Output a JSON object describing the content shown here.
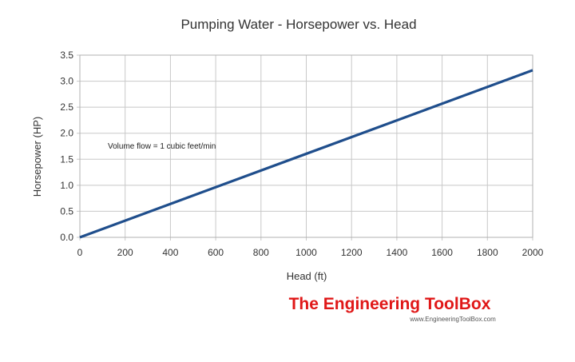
{
  "chart_data": {
    "type": "line",
    "title": "Pumping Water - Horsepower vs. Head",
    "xlabel": "Head (ft)",
    "ylabel": "Horsepower (HP)",
    "xlim": [
      0,
      2000
    ],
    "ylim": [
      0,
      3.5
    ],
    "x_ticks": [
      "0",
      "200",
      "400",
      "600",
      "800",
      "1000",
      "1200",
      "1400",
      "1600",
      "1800",
      "2000"
    ],
    "y_ticks": [
      "0.0",
      "0.5",
      "1.0",
      "1.5",
      "2.0",
      "2.5",
      "3.0",
      "3.5"
    ],
    "grid": true,
    "series": [
      {
        "x": [
          0,
          2000
        ],
        "y": [
          0,
          3.21
        ],
        "color": "#1f4e8c"
      }
    ],
    "annotation": "Volume flow = 1 cubic feet/min"
  },
  "branding": {
    "logo_text": "The Engineering ToolBox",
    "logo_url": "www.EngineeringToolBox.com",
    "logo_color": "#e01818"
  }
}
